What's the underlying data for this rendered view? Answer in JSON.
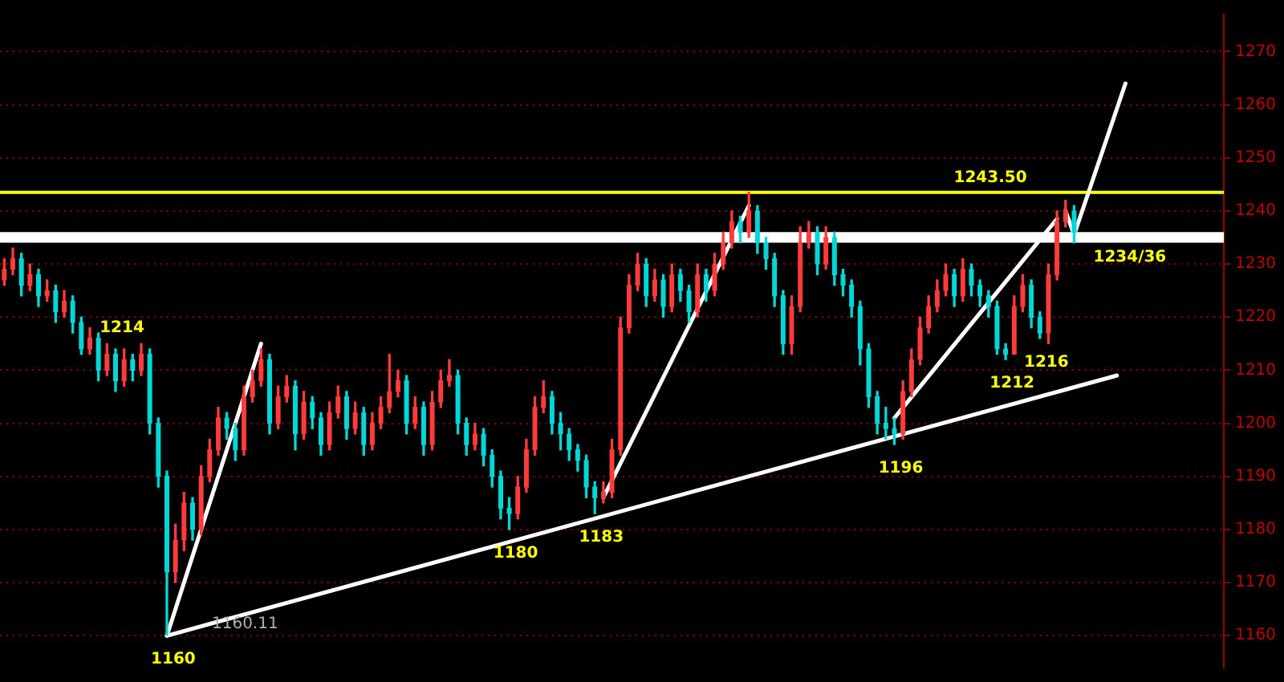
{
  "chart_data": {
    "type": "candlestick",
    "categories": [
      null,
      null,
      null,
      null,
      null,
      null,
      null,
      null,
      null,
      null,
      null,
      null,
      null,
      null,
      null,
      null,
      null,
      null,
      null,
      null,
      null,
      null,
      null,
      null,
      null,
      null,
      null,
      null,
      null,
      null,
      null,
      null,
      null,
      null,
      null,
      null,
      null,
      null,
      null,
      null,
      null,
      null,
      null,
      null,
      null,
      null,
      null,
      null,
      null,
      null,
      null,
      null,
      null,
      null,
      null,
      null,
      null,
      null,
      null,
      null,
      null,
      null,
      null,
      null,
      null,
      null,
      null,
      null,
      null,
      null,
      null,
      null,
      null,
      null,
      null,
      null,
      null,
      null,
      null,
      null,
      null,
      null,
      null,
      null,
      null,
      null,
      null,
      null,
      null,
      null,
      null,
      null,
      null,
      null,
      null,
      null,
      null,
      null,
      null,
      null,
      null,
      null,
      null,
      null,
      null,
      null,
      null,
      null,
      null,
      null,
      null,
      null,
      null,
      null,
      null,
      null,
      null,
      null,
      null,
      null,
      null,
      null,
      null,
      null,
      null,
      null,
      null,
      null,
      null,
      null,
      null,
      null,
      null,
      null,
      null,
      null,
      null,
      null,
      null,
      null,
      null,
      null,
      null
    ],
    "ohlc": [
      [
        1227,
        1231,
        1226,
        1229
      ],
      [
        1229,
        1233,
        1228,
        1231
      ],
      [
        1231,
        1232,
        1224,
        1226
      ],
      [
        1226,
        1230,
        1225,
        1228
      ],
      [
        1228,
        1229,
        1222,
        1224
      ],
      [
        1224,
        1227,
        1223,
        1225
      ],
      [
        1225,
        1226,
        1219,
        1221
      ],
      [
        1221,
        1225,
        1220,
        1223
      ],
      [
        1223,
        1224,
        1217,
        1219
      ],
      [
        1219,
        1220,
        1213,
        1214
      ],
      [
        1214,
        1218,
        1213,
        1216
      ],
      [
        1216,
        1217,
        1208,
        1210
      ],
      [
        1210,
        1215,
        1209,
        1213
      ],
      [
        1213,
        1214,
        1206,
        1208
      ],
      [
        1208,
        1214,
        1207,
        1212
      ],
      [
        1212,
        1213,
        1208,
        1210
      ],
      [
        1210,
        1215,
        1209,
        1213
      ],
      [
        1213,
        1214,
        1198,
        1200
      ],
      [
        1200,
        1201,
        1188,
        1190
      ],
      [
        1190,
        1191,
        1160.11,
        1172
      ],
      [
        1172,
        1181,
        1170,
        1178
      ],
      [
        1178,
        1187,
        1176,
        1185
      ],
      [
        1185,
        1186,
        1178,
        1180
      ],
      [
        1180,
        1192,
        1179,
        1190
      ],
      [
        1190,
        1197,
        1189,
        1195
      ],
      [
        1195,
        1203,
        1194,
        1201
      ],
      [
        1201,
        1202,
        1197,
        1199
      ],
      [
        1199,
        1200,
        1193,
        1195
      ],
      [
        1195,
        1207,
        1194,
        1205
      ],
      [
        1205,
        1210,
        1204,
        1208
      ],
      [
        1208,
        1214,
        1207,
        1212
      ],
      [
        1212,
        1213,
        1198,
        1200
      ],
      [
        1200,
        1207,
        1199,
        1205
      ],
      [
        1205,
        1209,
        1204,
        1207
      ],
      [
        1207,
        1208,
        1195,
        1198
      ],
      [
        1198,
        1206,
        1197,
        1204
      ],
      [
        1204,
        1205,
        1199,
        1201
      ],
      [
        1201,
        1202,
        1194,
        1196
      ],
      [
        1196,
        1204,
        1195,
        1202
      ],
      [
        1202,
        1207,
        1201,
        1205
      ],
      [
        1205,
        1206,
        1197,
        1199
      ],
      [
        1199,
        1204,
        1198,
        1202
      ],
      [
        1202,
        1203,
        1194,
        1196
      ],
      [
        1196,
        1202,
        1195,
        1200
      ],
      [
        1200,
        1205,
        1199,
        1203
      ],
      [
        1203,
        1213,
        1202,
        1206
      ],
      [
        1206,
        1210,
        1205,
        1208
      ],
      [
        1208,
        1209,
        1198,
        1200
      ],
      [
        1200,
        1205,
        1199,
        1203
      ],
      [
        1203,
        1204,
        1194,
        1196
      ],
      [
        1196,
        1206,
        1195,
        1204
      ],
      [
        1204,
        1210,
        1203,
        1208
      ],
      [
        1208,
        1212,
        1207,
        1209
      ],
      [
        1209,
        1210,
        1198,
        1200
      ],
      [
        1200,
        1201,
        1194,
        1196
      ],
      [
        1196,
        1200,
        1195,
        1198
      ],
      [
        1198,
        1199,
        1192,
        1194
      ],
      [
        1194,
        1195,
        1188,
        1190
      ],
      [
        1190,
        1191,
        1182,
        1184
      ],
      [
        1184,
        1186,
        1180,
        1183
      ],
      [
        1183,
        1190,
        1182,
        1188
      ],
      [
        1188,
        1197,
        1187,
        1195
      ],
      [
        1195,
        1205,
        1194,
        1203
      ],
      [
        1203,
        1208,
        1202,
        1205
      ],
      [
        1205,
        1206,
        1198,
        1200
      ],
      [
        1200,
        1202,
        1195,
        1198
      ],
      [
        1198,
        1199,
        1193,
        1195
      ],
      [
        1195,
        1196,
        1191,
        1193
      ],
      [
        1193,
        1194,
        1186,
        1188
      ],
      [
        1188,
        1189,
        1183,
        1186
      ],
      [
        1186,
        1189,
        1185,
        1187
      ],
      [
        1187,
        1197,
        1186,
        1195
      ],
      [
        1195,
        1220,
        1194,
        1218
      ],
      [
        1218,
        1228,
        1217,
        1226
      ],
      [
        1226,
        1232,
        1225,
        1230
      ],
      [
        1230,
        1231,
        1222,
        1224
      ],
      [
        1224,
        1229,
        1223,
        1227
      ],
      [
        1227,
        1228,
        1220,
        1222
      ],
      [
        1222,
        1230,
        1221,
        1228
      ],
      [
        1228,
        1229,
        1223,
        1225
      ],
      [
        1225,
        1226,
        1219,
        1221
      ],
      [
        1221,
        1230,
        1220,
        1228
      ],
      [
        1228,
        1229,
        1223,
        1225
      ],
      [
        1225,
        1232,
        1224,
        1230
      ],
      [
        1230,
        1236,
        1229,
        1234
      ],
      [
        1234,
        1240,
        1233,
        1238
      ],
      [
        1238,
        1239,
        1234,
        1236
      ],
      [
        1236,
        1243.5,
        1235,
        1240
      ],
      [
        1240,
        1241,
        1232,
        1234
      ],
      [
        1234,
        1235,
        1229,
        1231
      ],
      [
        1231,
        1232,
        1222,
        1224
      ],
      [
        1224,
        1225,
        1213,
        1215
      ],
      [
        1215,
        1224,
        1213,
        1222
      ],
      [
        1222,
        1237,
        1221,
        1234
      ],
      [
        1234,
        1238,
        1233,
        1236
      ],
      [
        1236,
        1237,
        1228,
        1230
      ],
      [
        1230,
        1237,
        1229,
        1235
      ],
      [
        1235,
        1236,
        1226,
        1228
      ],
      [
        1228,
        1229,
        1224,
        1226
      ],
      [
        1226,
        1227,
        1220,
        1222
      ],
      [
        1222,
        1223,
        1211,
        1214
      ],
      [
        1214,
        1215,
        1203,
        1205
      ],
      [
        1205,
        1206,
        1198,
        1200
      ],
      [
        1200,
        1203,
        1197,
        1199
      ],
      [
        1199,
        1201,
        1196,
        1198
      ],
      [
        1198,
        1208,
        1197,
        1206
      ],
      [
        1206,
        1214,
        1205,
        1212
      ],
      [
        1212,
        1220,
        1211,
        1218
      ],
      [
        1218,
        1224,
        1217,
        1222
      ],
      [
        1222,
        1227,
        1221,
        1225
      ],
      [
        1225,
        1230,
        1224,
        1228
      ],
      [
        1228,
        1229,
        1222,
        1224
      ],
      [
        1224,
        1231,
        1223,
        1229
      ],
      [
        1229,
        1230,
        1224,
        1226
      ],
      [
        1226,
        1227,
        1222,
        1224
      ],
      [
        1224,
        1225,
        1220,
        1222
      ],
      [
        1222,
        1223,
        1213,
        1214
      ],
      [
        1214,
        1215,
        1212,
        1213
      ],
      [
        1213,
        1224,
        1213,
        1222
      ],
      [
        1222,
        1228,
        1221,
        1226
      ],
      [
        1226,
        1227,
        1218,
        1220
      ],
      [
        1220,
        1221,
        1216,
        1217
      ],
      [
        1217,
        1230,
        1215,
        1228
      ],
      [
        1228,
        1240,
        1227,
        1238
      ],
      [
        1238,
        1242,
        1237,
        1240
      ],
      [
        1240,
        1241,
        1234,
        1236
      ],
      null,
      null,
      null,
      null,
      null,
      null,
      null,
      null,
      null,
      null,
      null,
      null,
      null,
      null,
      null,
      null,
      null
    ],
    "series": [
      {
        "type": "line",
        "color": "#ffffff",
        "values": [
          null,
          null,
          null,
          null,
          null,
          null,
          null,
          null,
          null,
          null,
          null,
          null,
          null,
          null,
          null,
          null,
          null,
          null,
          null,
          1160,
          null,
          null,
          null,
          null,
          null,
          null,
          null,
          null,
          null,
          null,
          null,
          null,
          null,
          null,
          null,
          null,
          null,
          null,
          null,
          null,
          null,
          null,
          null,
          null,
          null,
          null,
          null,
          null,
          null,
          null,
          null,
          null,
          null,
          null,
          null,
          null,
          null,
          null,
          null,
          null,
          null,
          null,
          null,
          null,
          null,
          null,
          null,
          null,
          null,
          null,
          null,
          null,
          null,
          null,
          null,
          null,
          null,
          null,
          null,
          null,
          null,
          null,
          null,
          null,
          null,
          null,
          null,
          null,
          null,
          null,
          null,
          null,
          null,
          null,
          null,
          null,
          null,
          null,
          null,
          null,
          null,
          null,
          null,
          null,
          null,
          null,
          null,
          null,
          null,
          null,
          null,
          null,
          null,
          null,
          null,
          null,
          null,
          null,
          null,
          null,
          null,
          null,
          null,
          null,
          null,
          null,
          null,
          null,
          null,
          null,
          1209,
          null,
          null,
          null,
          null,
          null,
          null,
          null,
          null,
          null,
          null,
          null,
          null
        ]
      },
      {
        "type": "line",
        "color": "#ffffff",
        "values": [
          null,
          null,
          null,
          null,
          null,
          null,
          null,
          null,
          null,
          null,
          null,
          null,
          null,
          null,
          null,
          null,
          null,
          null,
          null,
          1160,
          null,
          null,
          null,
          null,
          null,
          null,
          null,
          null,
          null,
          null,
          1215,
          null,
          null,
          null,
          null,
          null,
          null,
          null,
          null,
          null,
          null,
          null,
          null,
          null,
          null,
          null,
          null,
          null,
          null,
          null,
          null,
          null,
          null,
          null,
          null,
          null,
          null,
          null,
          null,
          null,
          null,
          null,
          null,
          null,
          null,
          null,
          null,
          null,
          null,
          null,
          null,
          null,
          null,
          null,
          null,
          null,
          null,
          null,
          null,
          null,
          null,
          null,
          null,
          null,
          null,
          null,
          null,
          null,
          null,
          null,
          null,
          null,
          null,
          null,
          null,
          null,
          null,
          null,
          null,
          null,
          null,
          null,
          null,
          null,
          null,
          null,
          null,
          null,
          null,
          null,
          null,
          null,
          null,
          null,
          null,
          null,
          null,
          null,
          null,
          null,
          null,
          null,
          null,
          null,
          null,
          null,
          null,
          null,
          null,
          null,
          null,
          null,
          null,
          null,
          null,
          null,
          null,
          null,
          null,
          null,
          null,
          null,
          null
        ]
      },
      {
        "type": "line",
        "color": "#ffffff",
        "values": [
          null,
          null,
          null,
          null,
          null,
          null,
          null,
          null,
          null,
          null,
          null,
          null,
          null,
          null,
          null,
          null,
          null,
          null,
          null,
          null,
          null,
          null,
          null,
          null,
          null,
          null,
          null,
          null,
          null,
          null,
          null,
          null,
          null,
          null,
          null,
          null,
          null,
          null,
          null,
          null,
          null,
          null,
          null,
          null,
          null,
          null,
          null,
          null,
          null,
          null,
          null,
          null,
          null,
          null,
          null,
          null,
          null,
          null,
          null,
          null,
          null,
          null,
          null,
          null,
          null,
          null,
          null,
          null,
          null,
          null,
          1186,
          null,
          null,
          null,
          null,
          null,
          null,
          null,
          null,
          null,
          null,
          null,
          null,
          null,
          null,
          null,
          null,
          1241,
          null,
          null,
          null,
          null,
          null,
          null,
          null,
          null,
          null,
          null,
          null,
          null,
          null,
          null,
          null,
          null,
          null,
          null,
          null,
          null,
          null,
          null,
          null,
          null,
          null,
          null,
          null,
          null,
          null,
          null,
          null,
          null,
          null,
          null,
          null,
          null,
          null,
          null,
          null,
          null,
          null,
          null,
          null,
          null,
          null,
          null,
          null,
          null,
          null,
          null,
          null,
          null,
          null,
          null,
          null
        ]
      },
      {
        "type": "line",
        "color": "#ffffff",
        "values": [
          null,
          null,
          null,
          null,
          null,
          null,
          null,
          null,
          null,
          null,
          null,
          null,
          null,
          null,
          null,
          null,
          null,
          null,
          null,
          null,
          null,
          null,
          null,
          null,
          null,
          null,
          null,
          null,
          null,
          null,
          null,
          null,
          null,
          null,
          null,
          null,
          null,
          null,
          null,
          null,
          null,
          null,
          null,
          null,
          null,
          null,
          null,
          null,
          null,
          null,
          null,
          null,
          null,
          null,
          null,
          null,
          null,
          null,
          null,
          null,
          null,
          null,
          null,
          null,
          null,
          null,
          null,
          null,
          null,
          null,
          null,
          null,
          null,
          null,
          null,
          null,
          null,
          null,
          null,
          null,
          null,
          null,
          null,
          null,
          null,
          null,
          null,
          null,
          null,
          null,
          null,
          null,
          null,
          null,
          null,
          null,
          null,
          null,
          null,
          null,
          null,
          null,
          null,
          null,
          1201,
          null,
          null,
          null,
          null,
          null,
          null,
          null,
          null,
          null,
          null,
          null,
          null,
          null,
          null,
          null,
          null,
          null,
          null,
          1238.5,
          null,
          null,
          null,
          null,
          null,
          null,
          null,
          null,
          null,
          null,
          null,
          null,
          null,
          null,
          null,
          null,
          null,
          null,
          null
        ]
      },
      {
        "type": "line",
        "color": "#ffffff",
        "values": [
          null,
          null,
          null,
          null,
          null,
          null,
          null,
          null,
          null,
          null,
          null,
          null,
          null,
          null,
          null,
          null,
          null,
          null,
          null,
          null,
          null,
          null,
          null,
          null,
          null,
          null,
          null,
          null,
          null,
          null,
          null,
          null,
          null,
          null,
          null,
          null,
          null,
          null,
          null,
          null,
          null,
          null,
          null,
          null,
          null,
          null,
          null,
          null,
          null,
          null,
          null,
          null,
          null,
          null,
          null,
          null,
          null,
          null,
          null,
          null,
          null,
          null,
          null,
          null,
          null,
          null,
          null,
          null,
          null,
          null,
          null,
          null,
          null,
          null,
          null,
          null,
          null,
          null,
          null,
          null,
          null,
          null,
          null,
          null,
          null,
          null,
          null,
          null,
          null,
          null,
          null,
          null,
          null,
          null,
          null,
          null,
          null,
          null,
          null,
          null,
          null,
          null,
          null,
          null,
          null,
          null,
          null,
          null,
          null,
          null,
          null,
          null,
          null,
          null,
          null,
          null,
          null,
          null,
          null,
          null,
          null,
          null,
          null,
          null,
          1240,
          1235.5,
          null,
          null,
          null,
          null,
          null,
          1264,
          null,
          null,
          null,
          null,
          null,
          null,
          null,
          null,
          null,
          null,
          null
        ]
      }
    ],
    "ylim": [
      1154,
      1277
    ],
    "yticks": [
      1160,
      1170,
      1180,
      1190,
      1200,
      1210,
      1220,
      1230,
      1240,
      1250,
      1260,
      1270
    ],
    "tick_labels": "y",
    "grid": "y",
    "marker": "none",
    "ref_lines": [
      {
        "axis": "y",
        "value": 1243.5,
        "label": "1243.50",
        "color": "#ffff00"
      }
    ],
    "bands": [
      {
        "axis": "y",
        "from": 1234,
        "to": 1236,
        "label": "1234/36",
        "color": "#ffffff"
      }
    ],
    "annotations": [
      {
        "text": "1160",
        "y": 1160
      },
      {
        "text": "1214",
        "y": 1214
      },
      {
        "text": "1180",
        "y": 1180
      },
      {
        "text": "1183",
        "y": 1183
      },
      {
        "text": "1196",
        "y": 1196
      },
      {
        "text": "1212",
        "y": 1212
      },
      {
        "text": "1216",
        "y": 1216
      },
      "1160.11"
    ]
  }
}
